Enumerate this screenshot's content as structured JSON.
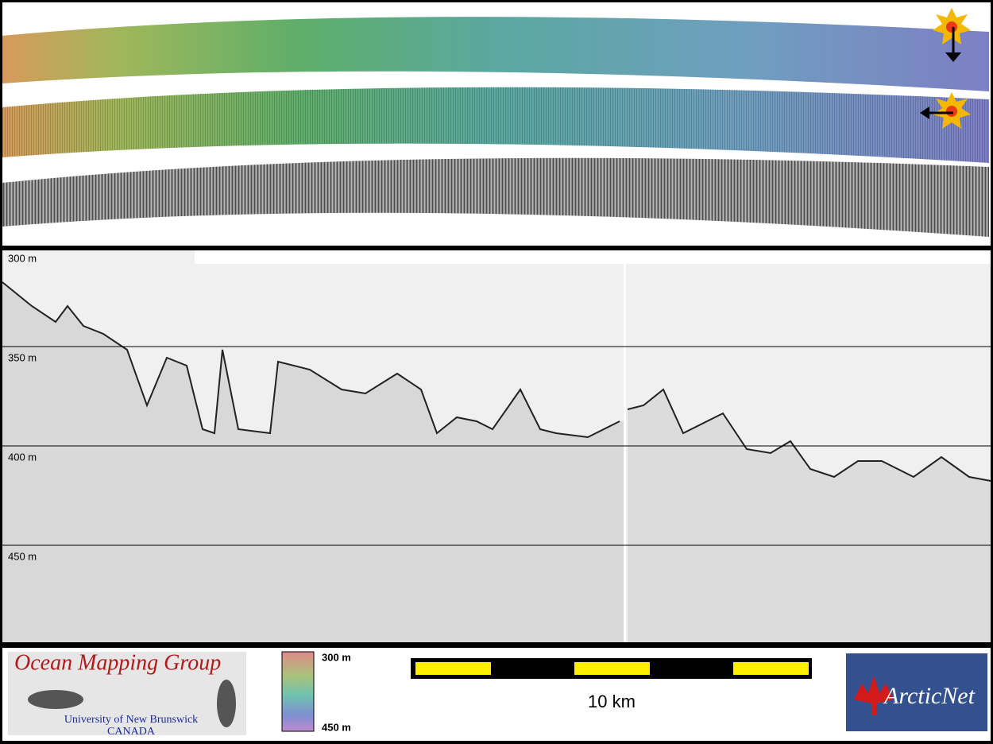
{
  "profile": {
    "depth_labels": [
      "300 m",
      "350 m",
      "400 m",
      "450 m"
    ]
  },
  "footer": {
    "logo_title": "Ocean Mapping Group",
    "logo_university": "University of New Brunswick",
    "logo_country": "CANADA",
    "colorbar_labels": [
      "300 m",
      "450 m"
    ],
    "scale_label": "10 km",
    "partner_logo": "ArcticNet"
  }
}
